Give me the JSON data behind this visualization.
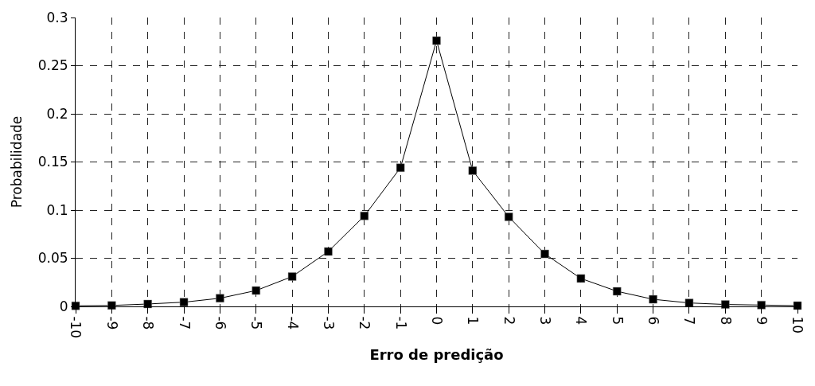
{
  "chart_data": {
    "type": "line",
    "xlabel": "Erro de predição",
    "ylabel": "Probabilidade",
    "x": [
      -10,
      -9,
      -8,
      -7,
      -6,
      -5,
      -4,
      -3,
      -2,
      -1,
      0,
      1,
      2,
      3,
      4,
      5,
      6,
      7,
      8,
      9,
      10
    ],
    "series": [
      {
        "color": "#000000",
        "values": [
          0.0006,
          0.001,
          0.0025,
          0.0044,
          0.0085,
          0.0165,
          0.031,
          0.057,
          0.094,
          0.144,
          0.276,
          0.141,
          0.093,
          0.0545,
          0.029,
          0.0157,
          0.0074,
          0.0036,
          0.002,
          0.0014,
          0.0008
        ]
      }
    ],
    "xlim": [
      -10,
      10
    ],
    "xticks": [
      -10,
      -9,
      -8,
      -7,
      -6,
      -5,
      -4,
      -3,
      -2,
      -1,
      0,
      1,
      2,
      3,
      4,
      5,
      6,
      7,
      8,
      9,
      10
    ],
    "ylim": [
      0,
      0.3
    ],
    "yticks": [
      0,
      0.05,
      0.1,
      0.15,
      0.2,
      0.25,
      0.3
    ],
    "grid": true,
    "marker": "square",
    "line_style": "solid",
    "legend": false
  }
}
